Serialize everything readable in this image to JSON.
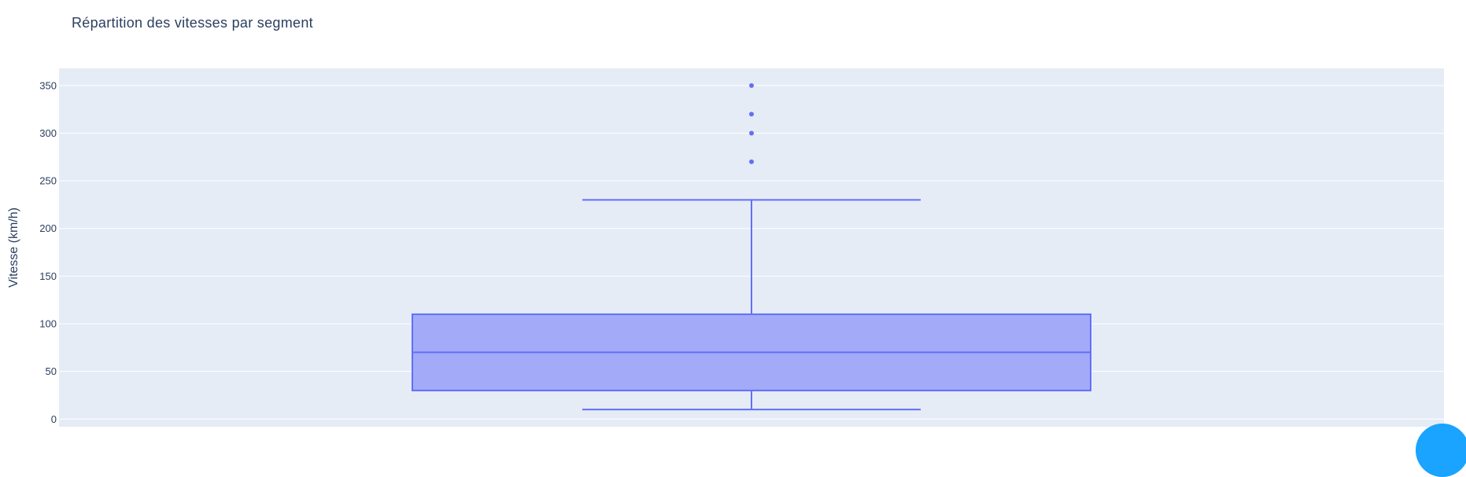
{
  "chart_data": {
    "type": "box",
    "title": "Répartition des vitesses par segment",
    "xlabel": "",
    "ylabel": "Vitesse (km/h)",
    "ylim": [
      -8,
      368
    ],
    "yticks": [
      0,
      50,
      100,
      150,
      200,
      250,
      300,
      350
    ],
    "grid": true,
    "box": {
      "lower_whisker": 10,
      "q1": 30,
      "median": 70,
      "q3": 110,
      "upper_whisker": 230,
      "outliers": [
        270,
        300,
        320,
        350
      ]
    }
  },
  "colors": {
    "plot_background": "#e5ecf6",
    "grid": "#ffffff",
    "box_line": "#636efa",
    "box_fill": "#a3aaf7",
    "text": "#2a3f5f",
    "fab": "#1aa3ff"
  },
  "fab_icon": "circle-button-icon"
}
